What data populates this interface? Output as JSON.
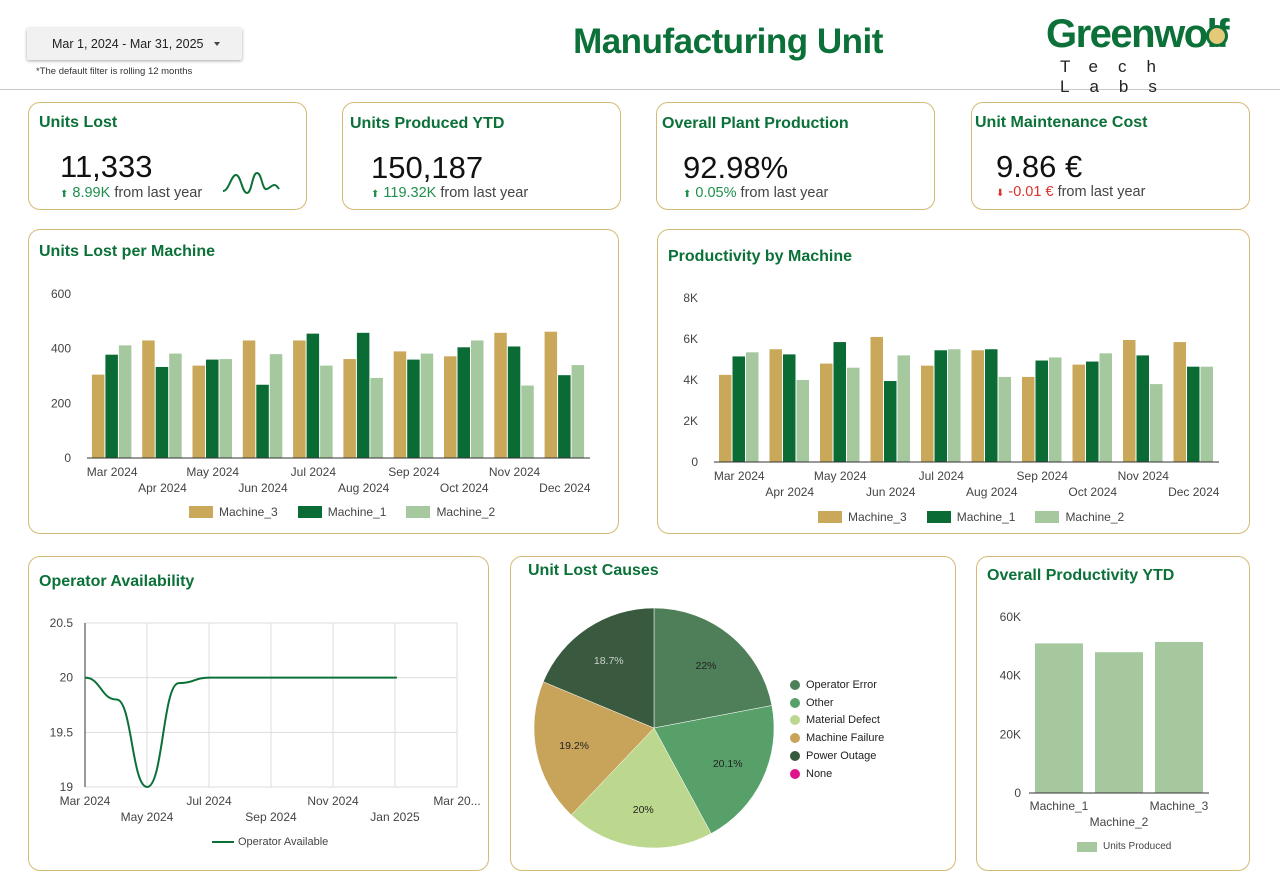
{
  "header": {
    "date_range": "Mar 1, 2024 - Mar 31, 2025",
    "filter_note": "*The default filter is rolling 12 months",
    "title": "Manufacturing Unit",
    "logo_word": "Greenwolf",
    "logo_sub": "Tech Labs"
  },
  "colors": {
    "primary_green": "#0b7138",
    "gold": "#c9a85a",
    "dark_green": "#0a6b35",
    "light_green": "#a6c89f",
    "card_border": "#d4ba74",
    "up": "#1e8f4d",
    "down": "#d9312b"
  },
  "kpis": [
    {
      "title": "Units Lost",
      "value": "11,333",
      "delta": "8.99K",
      "delta_suffix": "from last year",
      "direction": "up",
      "sparkline": "sparkline-icon"
    },
    {
      "title": "Units Produced YTD",
      "value": "150,187",
      "delta": "119.32K",
      "delta_suffix": "from last year",
      "direction": "up"
    },
    {
      "title": "Overall Plant Production",
      "value": "92.98%",
      "delta": "0.05%",
      "delta_suffix": "from last year",
      "direction": "up"
    },
    {
      "title": "Unit Maintenance Cost",
      "value": "9.86 €",
      "delta": "-0.01 €",
      "delta_suffix": "from last year",
      "direction": "down"
    }
  ],
  "chart_data": [
    {
      "type": "bar",
      "title": "Units Lost per Machine",
      "categories": [
        "Mar 2024",
        "Apr 2024",
        "May 2024",
        "Jun 2024",
        "Jul 2024",
        "Aug 2024",
        "Sep 2024",
        "Oct 2024",
        "Nov 2024",
        "Dec 2024"
      ],
      "series": [
        {
          "name": "Machine_3",
          "color": "#c9a85a",
          "values": [
            305,
            430,
            338,
            430,
            430,
            362,
            390,
            372,
            458,
            462
          ]
        },
        {
          "name": "Machine_1",
          "color": "#0a6b35",
          "values": [
            378,
            333,
            360,
            268,
            455,
            458,
            360,
            405,
            408,
            303
          ]
        },
        {
          "name": "Machine_2",
          "color": "#a6c89f",
          "values": [
            412,
            382,
            362,
            380,
            338,
            293,
            382,
            430,
            265,
            340
          ]
        }
      ],
      "yticks": [
        "0",
        "200",
        "400",
        "600"
      ],
      "ylim": [
        0,
        600
      ],
      "grid": false,
      "legend": "bottom"
    },
    {
      "type": "bar",
      "title": "Productivity by Machine",
      "categories": [
        "Mar 2024",
        "Apr 2024",
        "May 2024",
        "Jun 2024",
        "Jul 2024",
        "Aug 2024",
        "Sep 2024",
        "Oct 2024",
        "Nov 2024",
        "Dec 2024"
      ],
      "series": [
        {
          "name": "Machine_3",
          "color": "#c9a85a",
          "values": [
            4250,
            5500,
            4800,
            6100,
            4700,
            5450,
            4150,
            4750,
            5950,
            5850
          ]
        },
        {
          "name": "Machine_1",
          "color": "#0a6b35",
          "values": [
            5150,
            5250,
            5850,
            3950,
            5450,
            5500,
            4950,
            4900,
            5200,
            4650
          ]
        },
        {
          "name": "Machine_2",
          "color": "#a6c89f",
          "values": [
            5350,
            4000,
            4600,
            5200,
            5500,
            4150,
            5100,
            5300,
            3800,
            4650
          ]
        }
      ],
      "yticks": [
        "0",
        "2K",
        "4K",
        "6K",
        "8K"
      ],
      "ylim": [
        0,
        8000
      ],
      "grid": false,
      "legend": "bottom"
    },
    {
      "type": "line",
      "title": "Operator Availability",
      "x": [
        "2024-03-01",
        "2024-04-01",
        "2024-05-01",
        "2024-06-01",
        "2024-07-01",
        "2024-08-01",
        "2024-09-01",
        "2024-10-01",
        "2024-11-01",
        "2024-12-01",
        "2025-01-01"
      ],
      "xticks": [
        "Mar 2024",
        "May 2024",
        "Jul 2024",
        "Sep 2024",
        "Nov 2024",
        "Jan 2025",
        "Mar 20..."
      ],
      "series": [
        {
          "name": "Operator Available",
          "color": "#0b7138",
          "values": [
            20,
            19.8,
            19,
            19.95,
            20,
            20,
            20,
            20,
            20,
            20,
            20
          ]
        }
      ],
      "yticks": [
        "19",
        "19.5",
        "20",
        "20.5"
      ],
      "ylim": [
        19,
        20.5
      ],
      "xlim": [
        "2024-03-01",
        "2025-03-01"
      ],
      "grid": true,
      "legend": "bottom"
    },
    {
      "type": "pie",
      "title": "Unit Lost Causes",
      "slices": [
        {
          "label": "Operator Error",
          "value": 22,
          "text": "22%",
          "color": "#4f7f58"
        },
        {
          "label": "Other",
          "value": 20.1,
          "text": "20.1%",
          "color": "#58a06a"
        },
        {
          "label": "Material Defect",
          "value": 20,
          "text": "20%",
          "color": "#bcd88f"
        },
        {
          "label": "Machine Failure",
          "value": 19.2,
          "text": "19.2%",
          "color": "#c8a45a"
        },
        {
          "label": "Power Outage",
          "value": 18.7,
          "text": "18.7%",
          "color": "#3a5a3f"
        },
        {
          "label": "None",
          "value": 0,
          "text": "",
          "color": "#e0148a"
        }
      ],
      "legend": "right"
    },
    {
      "type": "bar",
      "title": "Overall Productivity YTD",
      "categories": [
        "Machine_1",
        "Machine_2",
        "Machine_3"
      ],
      "series": [
        {
          "name": "Units Produced",
          "color": "#a6c89f",
          "values": [
            51000,
            48000,
            51500
          ]
        }
      ],
      "yticks": [
        "0",
        "20K",
        "40K",
        "60K"
      ],
      "ylim": [
        0,
        60000
      ],
      "grid": false,
      "legend": "bottom"
    }
  ]
}
